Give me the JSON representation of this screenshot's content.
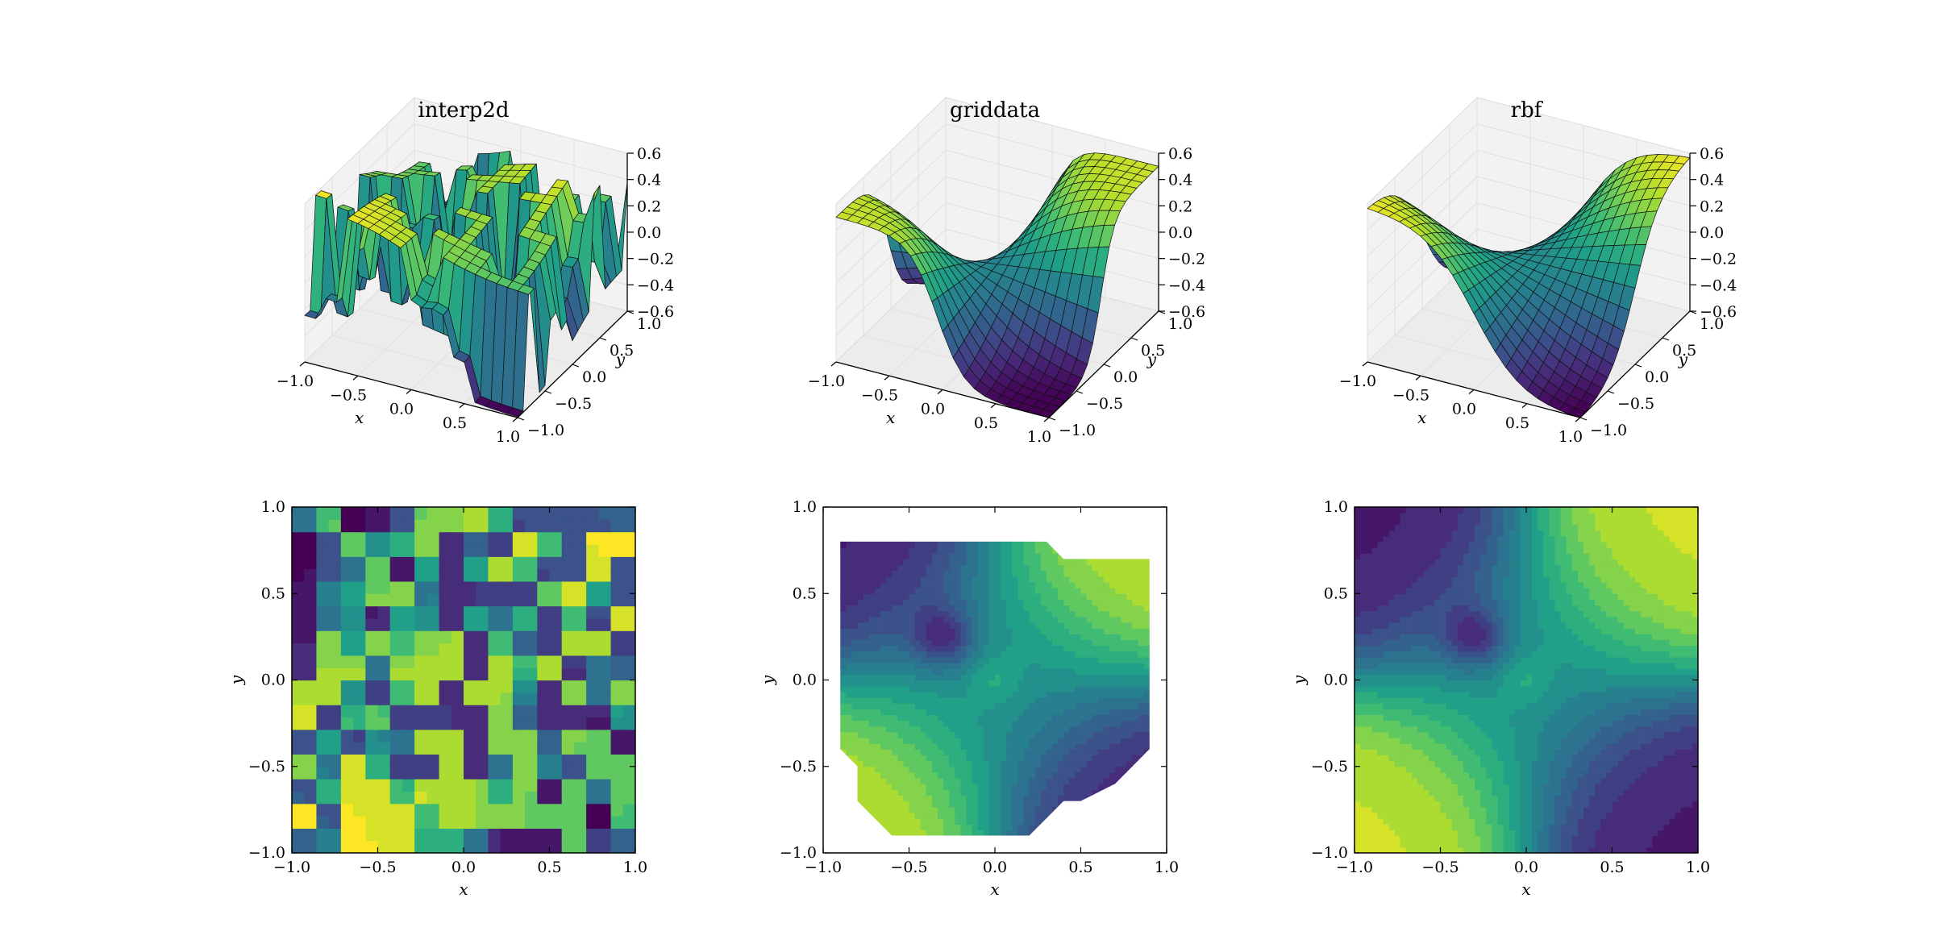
{
  "figure": {
    "titles": [
      "interp2d",
      "griddata",
      "rbf"
    ],
    "xlabel": "x",
    "ylabel": "y"
  },
  "chart_data": [
    {
      "type": "surface3d",
      "title": "interp2d",
      "xlabel": "x",
      "ylabel": "y",
      "xlim": [
        -1.0,
        1.0
      ],
      "ylim": [
        -1.0,
        1.0
      ],
      "zlim": [
        -0.6,
        0.6
      ],
      "xticks": [
        "−1.0",
        "−0.5",
        "0.0",
        "0.5",
        "1.0"
      ],
      "yticks": [
        "−1.0",
        "−0.5",
        "0.0",
        "0.5",
        "1.0"
      ],
      "zticks": [
        "−0.6",
        "−0.4",
        "−0.2",
        "0.0",
        "0.2",
        "0.4",
        "0.6"
      ],
      "colormap": "viridis",
      "grid": true
    },
    {
      "type": "surface3d",
      "title": "griddata",
      "xlabel": "x",
      "ylabel": "y",
      "xlim": [
        -1.0,
        1.0
      ],
      "ylim": [
        -1.0,
        1.0
      ],
      "zlim": [
        -0.6,
        0.6
      ],
      "xticks": [
        "−1.0",
        "−0.5",
        "0.0",
        "0.5",
        "1.0"
      ],
      "yticks": [
        "−1.0",
        "−0.5",
        "0.0",
        "0.5",
        "1.0"
      ],
      "zticks": [
        "−0.6",
        "−0.4",
        "−0.2",
        "0.0",
        "0.2",
        "0.4",
        "0.6"
      ],
      "colormap": "viridis",
      "grid": true
    },
    {
      "type": "surface3d",
      "title": "rbf",
      "xlabel": "x",
      "ylabel": "y",
      "xlim": [
        -1.0,
        1.0
      ],
      "ylim": [
        -1.0,
        1.0
      ],
      "zlim": [
        -0.6,
        0.6
      ],
      "xticks": [
        "−1.0",
        "−0.5",
        "0.0",
        "0.5",
        "1.0"
      ],
      "yticks": [
        "−1.0",
        "−0.5",
        "0.0",
        "0.5",
        "1.0"
      ],
      "zticks": [
        "−0.6",
        "−0.4",
        "−0.2",
        "0.0",
        "0.2",
        "0.4",
        "0.6"
      ],
      "colormap": "viridis",
      "grid": true
    },
    {
      "type": "contourf",
      "xlabel": "x",
      "ylabel": "y",
      "xlim": [
        -1.0,
        1.0
      ],
      "ylim": [
        -1.0,
        1.0
      ],
      "xticks": [
        "−1.0",
        "−0.5",
        "0.0",
        "0.5",
        "1.0"
      ],
      "yticks": [
        "−1.0",
        "−0.5",
        "0.0",
        "0.5",
        "1.0"
      ],
      "colormap": "viridis"
    },
    {
      "type": "contourf",
      "xlabel": "x",
      "ylabel": "y",
      "xlim": [
        -1.0,
        1.0
      ],
      "ylim": [
        -1.0,
        1.0
      ],
      "xticks": [
        "−1.0",
        "−0.5",
        "0.0",
        "0.5",
        "1.0"
      ],
      "yticks": [
        "−1.0",
        "−0.5",
        "0.0",
        "0.5",
        "1.0"
      ],
      "colormap": "viridis",
      "domain_hull": [
        [
          -0.9,
          0.8
        ],
        [
          0.3,
          0.8
        ],
        [
          0.4,
          0.7
        ],
        [
          0.9,
          0.7
        ],
        [
          0.9,
          -0.4
        ],
        [
          0.7,
          -0.6
        ],
        [
          0.5,
          -0.7
        ],
        [
          0.4,
          -0.7
        ],
        [
          0.3,
          -0.8
        ],
        [
          0.2,
          -0.9
        ],
        [
          -0.6,
          -0.9
        ],
        [
          -0.8,
          -0.7
        ],
        [
          -0.8,
          -0.5
        ],
        [
          -0.9,
          -0.4
        ]
      ]
    },
    {
      "type": "contourf",
      "xlabel": "x",
      "ylabel": "y",
      "xlim": [
        -1.0,
        1.0
      ],
      "ylim": [
        -1.0,
        1.0
      ],
      "xticks": [
        "−1.0",
        "−0.5",
        "0.0",
        "0.5",
        "1.0"
      ],
      "yticks": [
        "−1.0",
        "−0.5",
        "0.0",
        "0.5",
        "1.0"
      ],
      "colormap": "viridis"
    }
  ]
}
